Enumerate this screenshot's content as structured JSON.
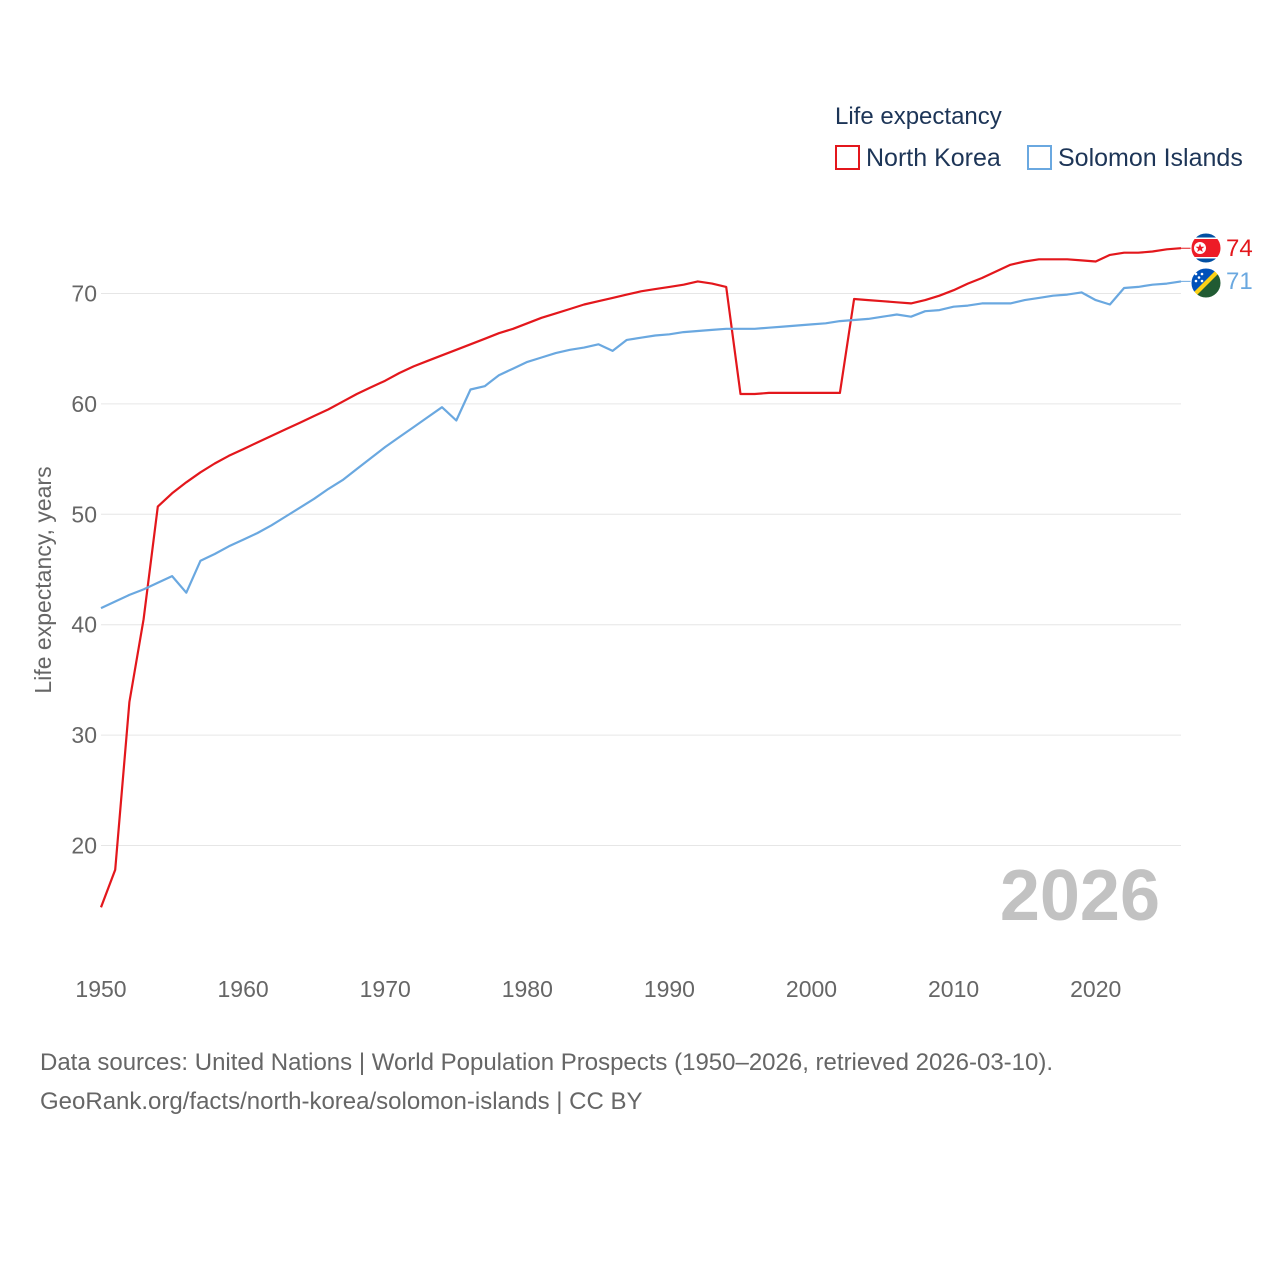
{
  "chart_data": {
    "type": "line",
    "title": "",
    "xlabel": "",
    "ylabel": "Life expectancy, years",
    "xlim": [
      1950,
      2026
    ],
    "ylim": [
      14,
      76
    ],
    "x_ticks": [
      1950,
      1960,
      1970,
      1980,
      1990,
      2000,
      2010,
      2020
    ],
    "y_ticks": [
      20,
      30,
      40,
      50,
      60,
      70
    ],
    "grid": true,
    "legend": {
      "title": "Life expectancy",
      "position": "top-right",
      "entries": [
        "North Korea",
        "Solomon Islands"
      ]
    },
    "year_label": "2026",
    "x": [
      1950,
      1951,
      1952,
      1953,
      1954,
      1955,
      1956,
      1957,
      1958,
      1959,
      1960,
      1961,
      1962,
      1963,
      1964,
      1965,
      1966,
      1967,
      1968,
      1969,
      1970,
      1971,
      1972,
      1973,
      1974,
      1975,
      1976,
      1977,
      1978,
      1979,
      1980,
      1981,
      1982,
      1983,
      1984,
      1985,
      1986,
      1987,
      1988,
      1989,
      1990,
      1991,
      1992,
      1993,
      1994,
      1995,
      1996,
      1997,
      1998,
      1999,
      2000,
      2001,
      2002,
      2003,
      2004,
      2005,
      2006,
      2007,
      2008,
      2009,
      2010,
      2011,
      2012,
      2013,
      2014,
      2015,
      2016,
      2017,
      2018,
      2019,
      2020,
      2021,
      2022,
      2023,
      2024,
      2025,
      2026
    ],
    "series": [
      {
        "name": "North Korea",
        "color": "#e3171c",
        "end_label": "74",
        "values": [
          14.4,
          17.8,
          33.0,
          40.5,
          50.7,
          51.9,
          52.9,
          53.8,
          54.6,
          55.3,
          55.9,
          56.5,
          57.1,
          57.7,
          58.3,
          58.9,
          59.5,
          60.2,
          60.9,
          61.5,
          62.1,
          62.8,
          63.4,
          63.9,
          64.4,
          64.9,
          65.4,
          65.9,
          66.4,
          66.8,
          67.3,
          67.8,
          68.2,
          68.6,
          69.0,
          69.3,
          69.6,
          69.9,
          70.2,
          70.4,
          70.6,
          70.8,
          71.1,
          70.9,
          70.6,
          60.9,
          60.9,
          61.0,
          61.0,
          61.0,
          61.0,
          61.0,
          61.0,
          69.5,
          69.4,
          69.3,
          69.2,
          69.1,
          69.4,
          69.8,
          70.3,
          70.9,
          71.4,
          72.0,
          72.6,
          72.9,
          73.1,
          73.1,
          73.1,
          73.0,
          72.9,
          73.5,
          73.7,
          73.7,
          73.8,
          74.0,
          74.1
        ]
      },
      {
        "name": "Solomon Islands",
        "color": "#6aa8e0",
        "end_label": "71",
        "values": [
          41.5,
          42.1,
          42.7,
          43.2,
          43.8,
          44.4,
          42.9,
          45.8,
          46.4,
          47.1,
          47.7,
          48.3,
          49.0,
          49.8,
          50.6,
          51.4,
          52.3,
          53.1,
          54.1,
          55.1,
          56.1,
          57.0,
          57.9,
          58.8,
          59.7,
          58.5,
          61.3,
          61.6,
          62.6,
          63.2,
          63.8,
          64.2,
          64.6,
          64.9,
          65.1,
          65.4,
          64.8,
          65.8,
          66.0,
          66.2,
          66.3,
          66.5,
          66.6,
          66.7,
          66.8,
          66.8,
          66.8,
          66.9,
          67.0,
          67.1,
          67.2,
          67.3,
          67.5,
          67.6,
          67.7,
          67.9,
          68.1,
          67.9,
          68.4,
          68.5,
          68.8,
          68.9,
          69.1,
          69.1,
          69.1,
          69.4,
          69.6,
          69.8,
          69.9,
          70.1,
          69.4,
          69.0,
          70.5,
          70.6,
          70.8,
          70.9,
          71.1
        ]
      }
    ]
  },
  "source": {
    "line1": "Data sources: United Nations | World Population Prospects (1950–2026, retrieved 2026-03-10).",
    "line2": "GeoRank.org/facts/north-korea/solomon-islands | CC BY"
  }
}
